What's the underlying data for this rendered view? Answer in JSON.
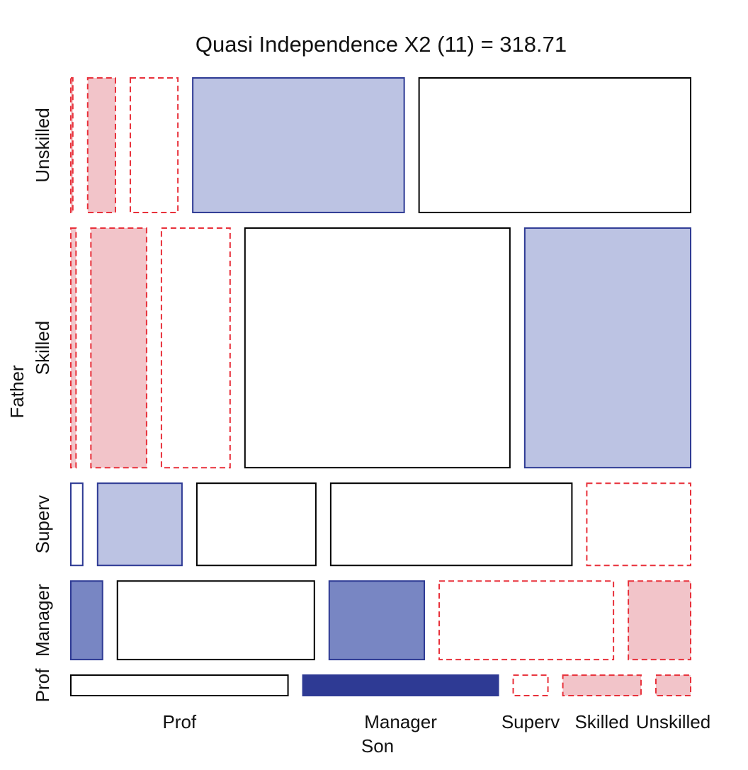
{
  "chart_data": {
    "type": "mosaic",
    "title": "Quasi Independence  X2 (11) = 318.71",
    "x_label": "Son",
    "y_label": "Father",
    "categories": [
      "Prof",
      "Manager",
      "Superv",
      "Skilled",
      "Unskilled"
    ],
    "series": [
      {
        "name": "Prof",
        "values": [
          50,
          45,
          8,
          18,
          8
        ],
        "colors": [
          "#ffffff",
          "#2e3a94",
          "#ffffff",
          "#f2c4c9",
          "#f2c4c9"
        ],
        "borders": [
          "#000000",
          "#2e3a94",
          "#e8303a",
          "#e8303a",
          "#e8303a"
        ],
        "line_styles": [
          "solid",
          "solid",
          "dashed",
          "dashed",
          "dashed"
        ]
      },
      {
        "name": "Manager",
        "values": [
          28,
          174,
          84,
          154,
          55
        ],
        "colors": [
          "#7886c3",
          "#ffffff",
          "#7886c3",
          "#ffffff",
          "#f2c4c9"
        ],
        "borders": [
          "#2e3a94",
          "#000000",
          "#2e3a94",
          "#e8303a",
          "#e8303a"
        ],
        "line_styles": [
          "solid",
          "solid",
          "solid",
          "dashed",
          "dashed"
        ]
      },
      {
        "name": "Superv",
        "values": [
          11,
          78,
          110,
          223,
          96
        ],
        "colors": [
          "#ffffff",
          "#bcc3e3",
          "#ffffff",
          "#ffffff",
          "#ffffff"
        ],
        "borders": [
          "#2e3a94",
          "#2e3a94",
          "#000000",
          "#000000",
          "#e8303a"
        ],
        "line_styles": [
          "solid",
          "solid",
          "solid",
          "solid",
          "dashed"
        ]
      },
      {
        "name": "Skilled",
        "values": [
          14,
          150,
          185,
          714,
          447
        ],
        "colors": [
          "#f2c4c9",
          "#f2c4c9",
          "#ffffff",
          "#ffffff",
          "#bcc3e3"
        ],
        "borders": [
          "#e8303a",
          "#e8303a",
          "#e8303a",
          "#000000",
          "#2e3a94"
        ],
        "line_styles": [
          "dashed",
          "dashed",
          "dashed",
          "solid",
          "solid"
        ]
      },
      {
        "name": "Unskilled",
        "values": [
          3,
          42,
          72,
          320,
          411
        ],
        "colors": [
          "#f2c4c9",
          "#f2c4c9",
          "#ffffff",
          "#bcc3e3",
          "#ffffff"
        ],
        "borders": [
          "#e8303a",
          "#e8303a",
          "#e8303a",
          "#2e3a94",
          "#000000"
        ],
        "line_styles": [
          "dashed",
          "dashed",
          "dashed",
          "solid",
          "solid"
        ]
      }
    ]
  }
}
